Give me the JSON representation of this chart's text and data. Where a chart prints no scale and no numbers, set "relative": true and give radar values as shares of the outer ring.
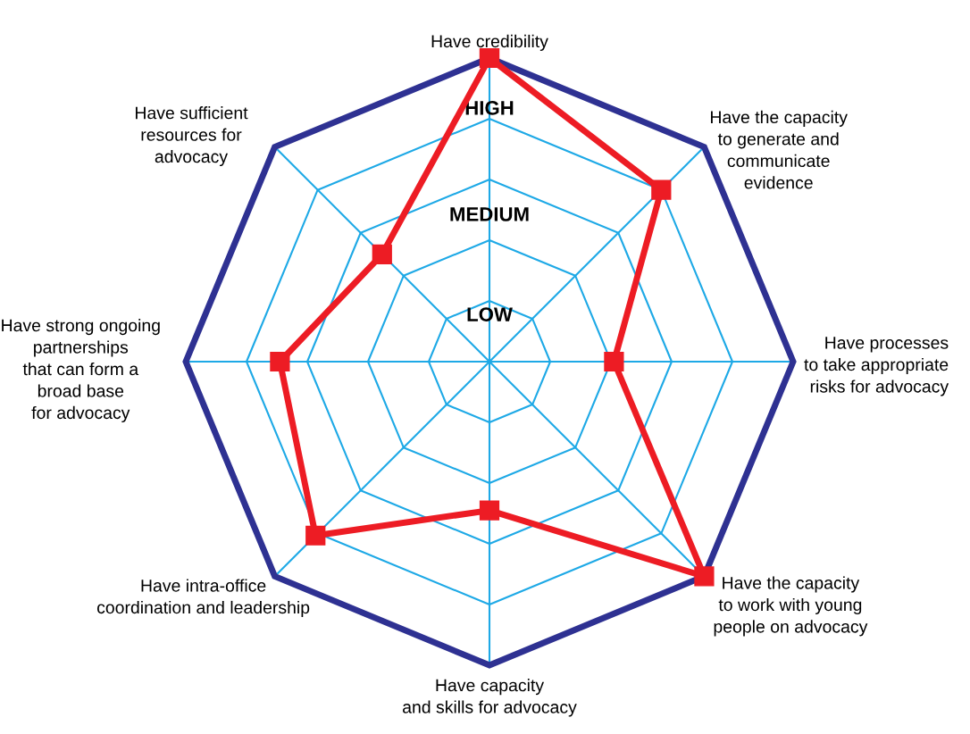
{
  "chart_data": {
    "type": "radar",
    "relative": true,
    "grid": true,
    "marker": "square",
    "line_style": "solid",
    "categories": [
      "Have credibility",
      "Have the capacity\nto generate and\ncommunicate\nevidence",
      "Have processes\nto take appropriate\nrisks for advocacy",
      "Have the capacity\nto work with young\npeople on advocacy",
      "Have capacity\nand skills for advocacy",
      "Have intra-office\ncoordination and leadership",
      "Have strong ongoing\npartnerships\nthat can form a\nbroad base\nfor advocacy",
      "Have sufficient\nresources for\nadvocacy"
    ],
    "series": [
      {
        "color": "#ed1c24",
        "values": [
          1,
          0.8,
          0.41,
          1,
          0.49,
          0.81,
          0.69,
          0.5
        ]
      }
    ],
    "annotations": [
      "LOW",
      "MEDIUM",
      "HIGH"
    ]
  }
}
